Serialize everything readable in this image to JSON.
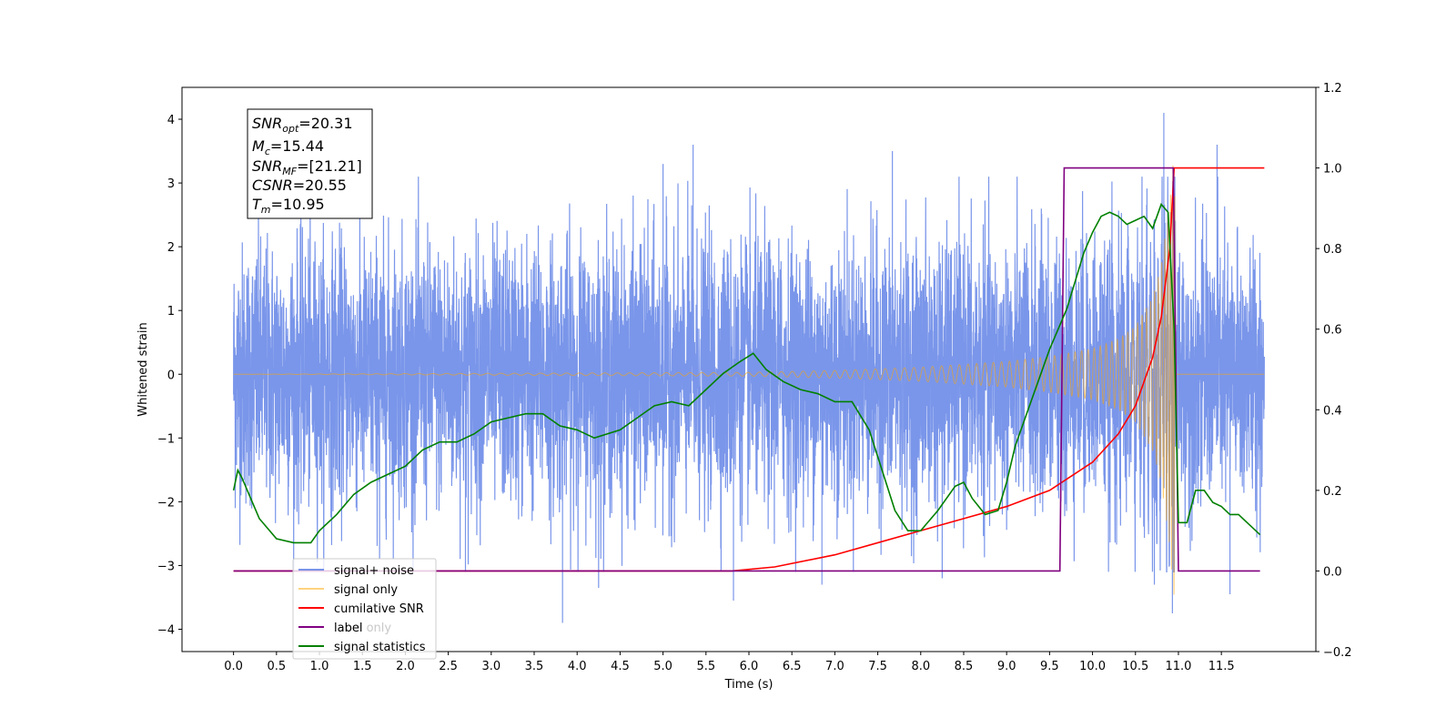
{
  "chart_data": {
    "type": "line",
    "xlabel": "Time (s)",
    "ylabel": "Whitened strain",
    "xlim": [
      -0.6,
      12.6
    ],
    "ylim": [
      -4.35,
      4.5
    ],
    "y2lim": [
      -0.2,
      1.2
    ],
    "x_ticks": [
      "0.0",
      "0.5",
      "1.0",
      "1.5",
      "2.0",
      "2.5",
      "3.0",
      "3.5",
      "4.0",
      "4.5",
      "5.0",
      "5.5",
      "6.0",
      "6.5",
      "7.0",
      "7.5",
      "8.0",
      "8.5",
      "9.0",
      "9.5",
      "10.0",
      "10.5",
      "11.0",
      "11.5"
    ],
    "y_ticks": [
      "4",
      "3",
      "2",
      "1",
      "0",
      "−1",
      "−2",
      "−3",
      "−4"
    ],
    "y2_ticks": [
      "1.2",
      "1.0",
      "0.8",
      "0.6",
      "0.4",
      "0.2",
      "0.0",
      "−0.2"
    ],
    "grid": false,
    "legend_position": "lower-left",
    "annotation": {
      "snr_opt": {
        "main": "SNR",
        "sub": "opt",
        "value": "=20.31"
      },
      "mc": {
        "main": "M",
        "sub": "c",
        "value": "=15.44"
      },
      "snr_mf": {
        "main": "SNR",
        "sub": "MF",
        "value": "=[21.21]"
      },
      "csnr": {
        "main": "CSNR",
        "value": "=20.55"
      },
      "tm": {
        "main": "T",
        "sub": "m",
        "value": "=10.95"
      }
    },
    "series": [
      {
        "name": "signal+ noise",
        "color": "#4169e1",
        "axis": "left",
        "description_shown": "noisy whitened strain spanning 0.0 to 12.0 s, mostly within ±2.5 with spikes to ±4",
        "x_range": [
          0.0,
          12.0
        ],
        "typical_amplitude": 1.2,
        "spike_values": [
          {
            "x": 3.83,
            "y": -3.9
          },
          {
            "x": 4.25,
            "y": -3.35
          },
          {
            "x": 5.35,
            "y": 3.6
          },
          {
            "x": 5.82,
            "y": -3.55
          },
          {
            "x": 6.85,
            "y": -3.3
          },
          {
            "x": 7.67,
            "y": 3.5
          },
          {
            "x": 8.25,
            "y": -3.2
          },
          {
            "x": 10.72,
            "y": -3.3
          },
          {
            "x": 10.83,
            "y": 4.1
          },
          {
            "x": 10.93,
            "y": -3.75
          },
          {
            "x": 11.45,
            "y": 3.6
          },
          {
            "x": 11.6,
            "y": -3.45
          },
          {
            "x": 5.0,
            "y": 3.3
          },
          {
            "x": 2.7,
            "y": -3.1
          },
          {
            "x": 1.7,
            "y": -2.9
          }
        ]
      },
      {
        "name": "signal only",
        "color": "#ffa500",
        "axis": "left",
        "description_shown": "chirp: zero until ~6 s, growing oscillation peaking ~3.5 at 10.95 s, zero after",
        "envelope": {
          "x": [
            0.0,
            6.0,
            7.0,
            8.0,
            9.0,
            9.5,
            10.0,
            10.3,
            10.5,
            10.7,
            10.8,
            10.9,
            10.95,
            11.0,
            12.0
          ],
          "y": [
            0.0,
            0.03,
            0.06,
            0.11,
            0.2,
            0.28,
            0.4,
            0.55,
            0.75,
            1.2,
            1.7,
            2.7,
            3.5,
            0.0,
            0.0
          ]
        }
      },
      {
        "name": "cumilative SNR",
        "color": "#ff0000",
        "axis": "right",
        "x": [
          5.8,
          6.3,
          7.0,
          7.5,
          8.0,
          8.5,
          9.0,
          9.5,
          10.0,
          10.3,
          10.5,
          10.7,
          10.8,
          10.9,
          10.95,
          11.0,
          12.0
        ],
        "y": [
          0.0,
          0.01,
          0.04,
          0.07,
          0.1,
          0.13,
          0.16,
          0.2,
          0.27,
          0.34,
          0.41,
          0.53,
          0.63,
          0.8,
          1.0,
          1.0,
          1.0
        ]
      },
      {
        "name": "label",
        "color": "#800080",
        "axis": "right",
        "x": [
          0.0,
          9.62,
          9.67,
          10.94,
          11.0,
          11.95
        ],
        "y": [
          0.0,
          0.0,
          1.0,
          1.0,
          0.0,
          0.0
        ]
      },
      {
        "name": "label only",
        "color": "#ff0000",
        "axis": "right",
        "partially_hidden": true
      },
      {
        "name": "signal statistics",
        "color": "#008000",
        "axis": "right",
        "x": [
          0.0,
          0.05,
          0.1,
          0.2,
          0.3,
          0.5,
          0.7,
          0.9,
          1.0,
          1.2,
          1.4,
          1.6,
          1.8,
          2.0,
          2.2,
          2.4,
          2.6,
          2.8,
          3.0,
          3.2,
          3.4,
          3.6,
          3.8,
          4.0,
          4.2,
          4.5,
          4.7,
          4.9,
          5.1,
          5.3,
          5.5,
          5.7,
          5.9,
          6.05,
          6.2,
          6.4,
          6.6,
          6.8,
          7.0,
          7.2,
          7.4,
          7.55,
          7.7,
          7.85,
          8.0,
          8.2,
          8.4,
          8.5,
          8.6,
          8.75,
          8.9,
          9.0,
          9.1,
          9.25,
          9.4,
          9.5,
          9.6,
          9.7,
          9.8,
          9.9,
          10.0,
          10.1,
          10.2,
          10.3,
          10.4,
          10.5,
          10.6,
          10.7,
          10.8,
          10.88,
          10.95,
          11.0,
          11.1,
          11.2,
          11.3,
          11.4,
          11.5,
          11.6,
          11.7,
          11.8,
          11.95
        ],
        "y": [
          0.2,
          0.25,
          0.23,
          0.18,
          0.13,
          0.08,
          0.07,
          0.07,
          0.1,
          0.14,
          0.19,
          0.22,
          0.24,
          0.26,
          0.3,
          0.32,
          0.32,
          0.34,
          0.37,
          0.38,
          0.39,
          0.39,
          0.36,
          0.35,
          0.33,
          0.35,
          0.38,
          0.41,
          0.42,
          0.41,
          0.45,
          0.49,
          0.52,
          0.54,
          0.5,
          0.47,
          0.45,
          0.44,
          0.42,
          0.42,
          0.35,
          0.25,
          0.15,
          0.1,
          0.1,
          0.15,
          0.21,
          0.22,
          0.18,
          0.14,
          0.15,
          0.22,
          0.31,
          0.4,
          0.49,
          0.55,
          0.6,
          0.65,
          0.72,
          0.79,
          0.84,
          0.88,
          0.89,
          0.88,
          0.86,
          0.87,
          0.88,
          0.85,
          0.91,
          0.89,
          0.6,
          0.12,
          0.12,
          0.2,
          0.2,
          0.17,
          0.16,
          0.14,
          0.14,
          0.12,
          0.09
        ]
      }
    ]
  }
}
